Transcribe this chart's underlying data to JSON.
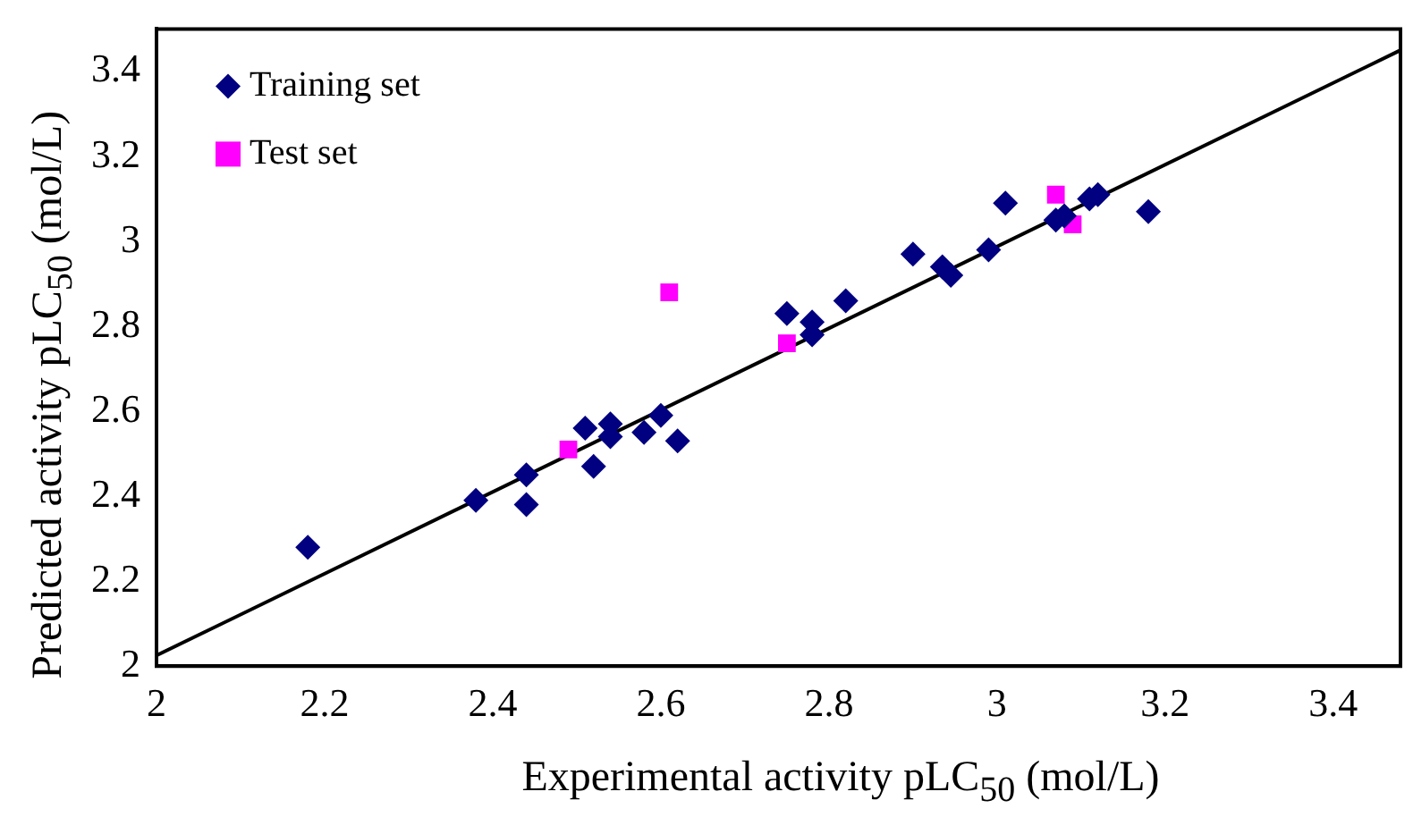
{
  "chart_data": {
    "type": "scatter",
    "xlabel": "Experimental activity pLC$_{50}$ (mol/L)",
    "ylabel": "Predicted activity pLC$_{50}$ (mol/L)",
    "xlim": [
      2,
      3.48
    ],
    "ylim": [
      2,
      3.5
    ],
    "xticks": [
      2,
      2.2,
      2.4,
      2.6,
      2.8,
      3,
      3.2,
      3.4
    ],
    "yticks": [
      2,
      2.2,
      2.4,
      2.6,
      2.8,
      3,
      3.2,
      3.4
    ],
    "grid": false,
    "legend": "top left",
    "series": [
      {
        "name": "Training set",
        "color": "#000080",
        "marker": "diamond",
        "x": [
          2.18,
          2.38,
          2.44,
          2.44,
          2.51,
          2.52,
          2.54,
          2.54,
          2.6,
          2.58,
          2.62,
          2.75,
          2.78,
          2.78,
          2.82,
          2.9,
          2.945,
          2.935,
          2.99,
          3.01,
          3.08,
          3.07,
          3.12,
          3.11,
          3.18
        ],
        "values": [
          2.28,
          2.39,
          2.45,
          2.38,
          2.56,
          2.47,
          2.57,
          2.54,
          2.59,
          2.55,
          2.53,
          2.83,
          2.78,
          2.81,
          2.86,
          2.97,
          2.92,
          2.94,
          2.98,
          3.09,
          3.06,
          3.05,
          3.11,
          3.1,
          3.07
        ]
      },
      {
        "name": "Test set",
        "color": "#ff00ff",
        "marker": "square",
        "x": [
          2.49,
          2.61,
          2.75,
          3.07,
          3.09
        ],
        "values": [
          2.51,
          2.88,
          2.76,
          3.11,
          3.04
        ]
      },
      {
        "type": "line",
        "color": "#000000",
        "marker": "none",
        "line_style": "solid",
        "x": [
          2,
          3.48
        ],
        "values": [
          2.025,
          3.45
        ]
      }
    ]
  }
}
